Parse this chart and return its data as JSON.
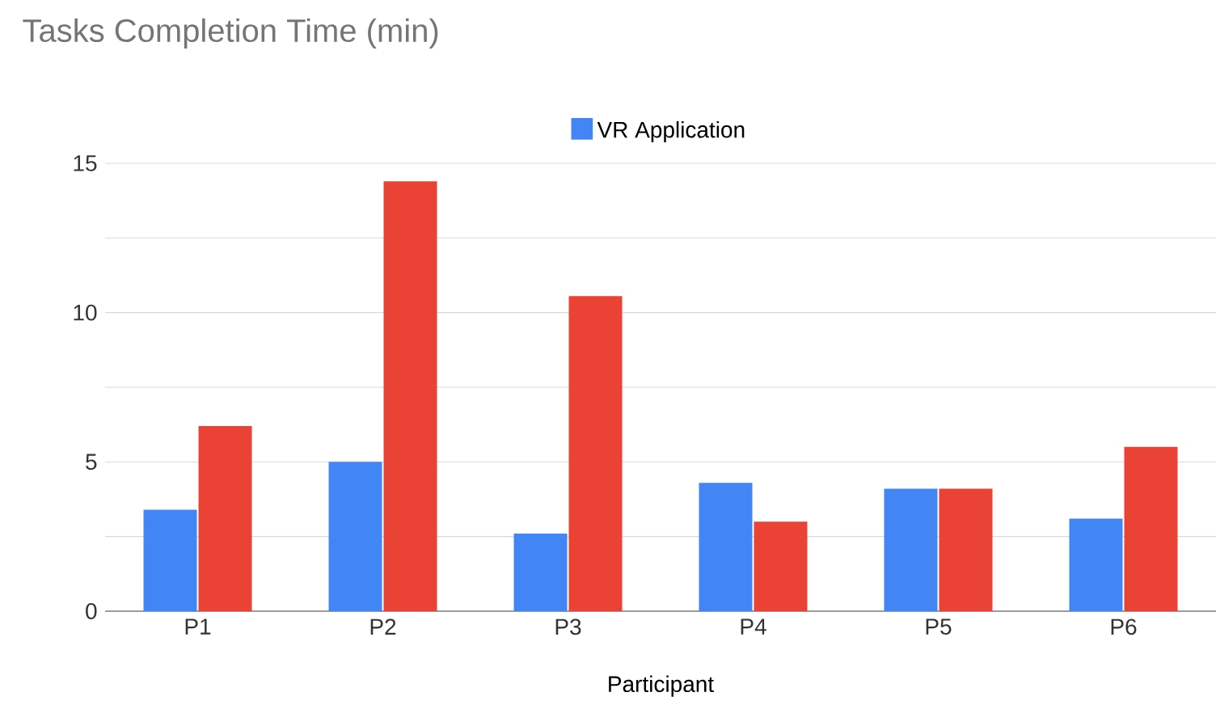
{
  "chart_data": {
    "type": "bar",
    "title": "Tasks Completion Time (min)",
    "xlabel": "Participant",
    "categories": [
      "P1",
      "P2",
      "P3",
      "P4",
      "P5",
      "P6"
    ],
    "series": [
      {
        "name": "VR Application",
        "color": "#4285f4",
        "values": [
          3.4,
          5.0,
          2.6,
          4.3,
          4.1,
          3.1
        ]
      },
      {
        "color": "#ea4335",
        "values": [
          6.2,
          14.4,
          10.55,
          3.0,
          4.1,
          5.5
        ]
      }
    ],
    "ylim": [
      0,
      15
    ],
    "yticks": [
      0,
      {
        "value": 2.5,
        "label": null
      },
      5,
      {
        "value": 7.5,
        "label": null
      },
      10,
      {
        "value": 12.5,
        "label": null
      },
      15
    ],
    "grid": "y",
    "legend": "top"
  }
}
